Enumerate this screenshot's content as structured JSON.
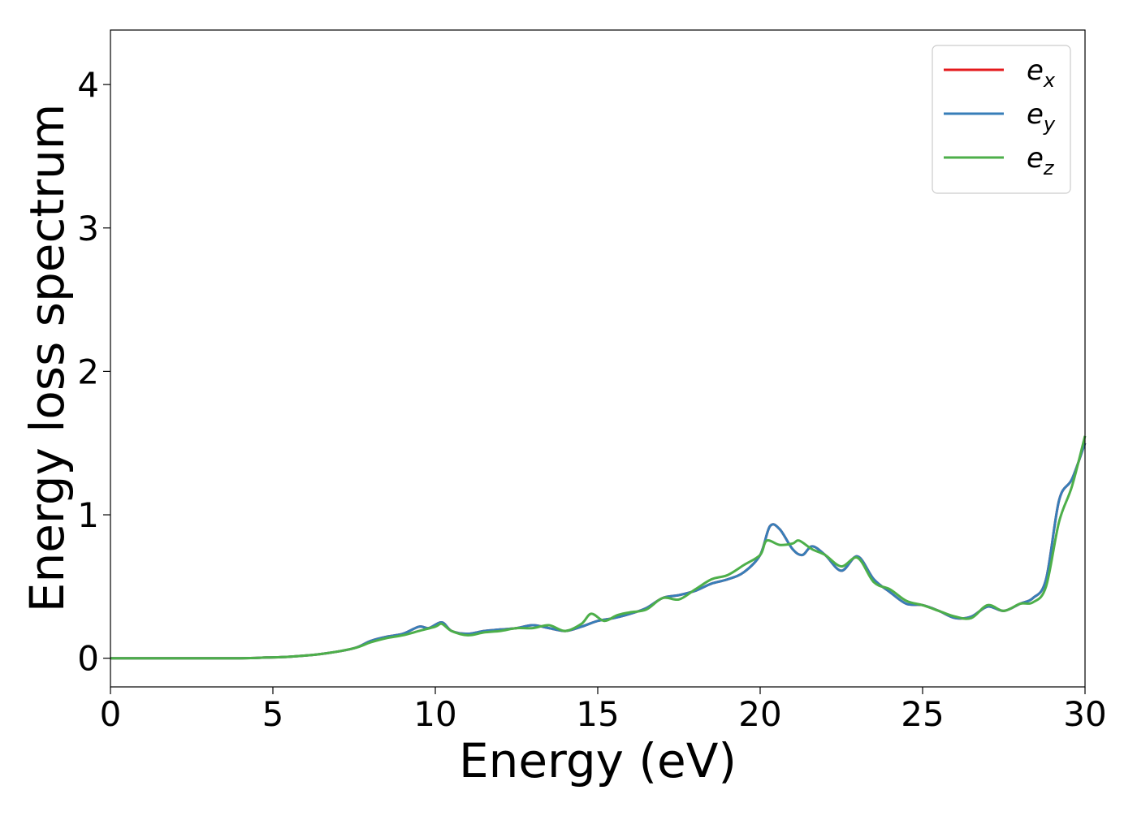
{
  "chart_data": {
    "type": "line",
    "title": "",
    "xlabel": "Energy (eV)",
    "ylabel": "Energy loss spectrum",
    "xlim": [
      0,
      30
    ],
    "ylim": [
      -0.2,
      4.38
    ],
    "xticks": [
      0,
      5,
      10,
      15,
      20,
      25,
      30
    ],
    "yticks": [
      0,
      1,
      2,
      3,
      4
    ],
    "grid": false,
    "legend_position": "top-right",
    "series": [
      {
        "name": "e_x",
        "label_base": "e",
        "label_sub": "x",
        "color": "#e41a1c",
        "x": [
          0,
          2,
          4,
          4.8,
          5.5,
          6.5,
          7.5,
          8,
          8.5,
          9,
          9.5,
          9.8,
          10.2,
          10.5,
          11,
          11.5,
          12,
          12.5,
          13,
          13.5,
          14,
          14.5,
          15,
          15.5,
          16,
          16.5,
          17,
          17.5,
          18,
          18.5,
          19,
          19.5,
          20,
          20.3,
          20.6,
          21,
          21.3,
          21.6,
          22,
          22.5,
          23,
          23.5,
          24,
          24.5,
          25,
          25.5,
          26,
          26.5,
          27,
          27.5,
          28,
          28.4,
          28.8,
          29.2,
          29.6,
          30
        ],
        "values": [
          0,
          0,
          0,
          0.005,
          0.01,
          0.03,
          0.07,
          0.12,
          0.15,
          0.17,
          0.22,
          0.21,
          0.25,
          0.19,
          0.17,
          0.19,
          0.2,
          0.21,
          0.23,
          0.21,
          0.19,
          0.22,
          0.26,
          0.28,
          0.31,
          0.35,
          0.42,
          0.44,
          0.47,
          0.52,
          0.55,
          0.6,
          0.72,
          0.92,
          0.9,
          0.76,
          0.72,
          0.78,
          0.72,
          0.61,
          0.71,
          0.55,
          0.46,
          0.38,
          0.37,
          0.33,
          0.28,
          0.29,
          0.36,
          0.33,
          0.38,
          0.42,
          0.55,
          1.1,
          1.25,
          1.5
        ]
      },
      {
        "name": "e_y",
        "label_base": "e",
        "label_sub": "y",
        "color": "#377eb8",
        "x": [
          0,
          2,
          4,
          4.8,
          5.5,
          6.5,
          7.5,
          8,
          8.5,
          9,
          9.5,
          9.8,
          10.2,
          10.5,
          11,
          11.5,
          12,
          12.5,
          13,
          13.5,
          14,
          14.5,
          15,
          15.5,
          16,
          16.5,
          17,
          17.5,
          18,
          18.5,
          19,
          19.5,
          20,
          20.3,
          20.6,
          21,
          21.3,
          21.6,
          22,
          22.5,
          23,
          23.5,
          24,
          24.5,
          25,
          25.5,
          26,
          26.5,
          27,
          27.5,
          28,
          28.4,
          28.8,
          29.2,
          29.6,
          30
        ],
        "values": [
          0,
          0,
          0,
          0.005,
          0.01,
          0.03,
          0.07,
          0.12,
          0.15,
          0.17,
          0.22,
          0.21,
          0.25,
          0.19,
          0.17,
          0.19,
          0.2,
          0.21,
          0.23,
          0.21,
          0.19,
          0.22,
          0.26,
          0.28,
          0.31,
          0.35,
          0.42,
          0.44,
          0.47,
          0.52,
          0.55,
          0.6,
          0.72,
          0.92,
          0.9,
          0.76,
          0.72,
          0.78,
          0.72,
          0.61,
          0.71,
          0.55,
          0.46,
          0.38,
          0.37,
          0.33,
          0.28,
          0.29,
          0.36,
          0.33,
          0.38,
          0.42,
          0.55,
          1.1,
          1.25,
          1.5
        ]
      },
      {
        "name": "e_z",
        "label_base": "e",
        "label_sub": "z",
        "color": "#4daf4a",
        "x": [
          0,
          2,
          4,
          4.8,
          5.5,
          6.5,
          7.5,
          8,
          8.5,
          9,
          9.5,
          10,
          10.2,
          10.5,
          11,
          11.5,
          12,
          12.5,
          13,
          13.5,
          14,
          14.5,
          14.8,
          15.2,
          15.6,
          16,
          16.5,
          17,
          17.5,
          18,
          18.5,
          19,
          19.5,
          20,
          20.2,
          20.6,
          21,
          21.2,
          21.6,
          22,
          22.5,
          23,
          23.5,
          24,
          24.5,
          25,
          25.5,
          26,
          26.5,
          27,
          27.5,
          28,
          28.4,
          28.8,
          29.2,
          29.6,
          30
        ],
        "values": [
          0,
          0,
          0,
          0.005,
          0.01,
          0.03,
          0.07,
          0.11,
          0.14,
          0.16,
          0.19,
          0.22,
          0.24,
          0.19,
          0.16,
          0.18,
          0.19,
          0.21,
          0.21,
          0.23,
          0.19,
          0.24,
          0.31,
          0.26,
          0.3,
          0.32,
          0.34,
          0.42,
          0.41,
          0.48,
          0.55,
          0.58,
          0.65,
          0.72,
          0.82,
          0.79,
          0.8,
          0.82,
          0.76,
          0.72,
          0.64,
          0.7,
          0.53,
          0.48,
          0.4,
          0.37,
          0.33,
          0.29,
          0.28,
          0.37,
          0.33,
          0.38,
          0.39,
          0.5,
          0.95,
          1.2,
          1.55
        ]
      }
    ]
  }
}
